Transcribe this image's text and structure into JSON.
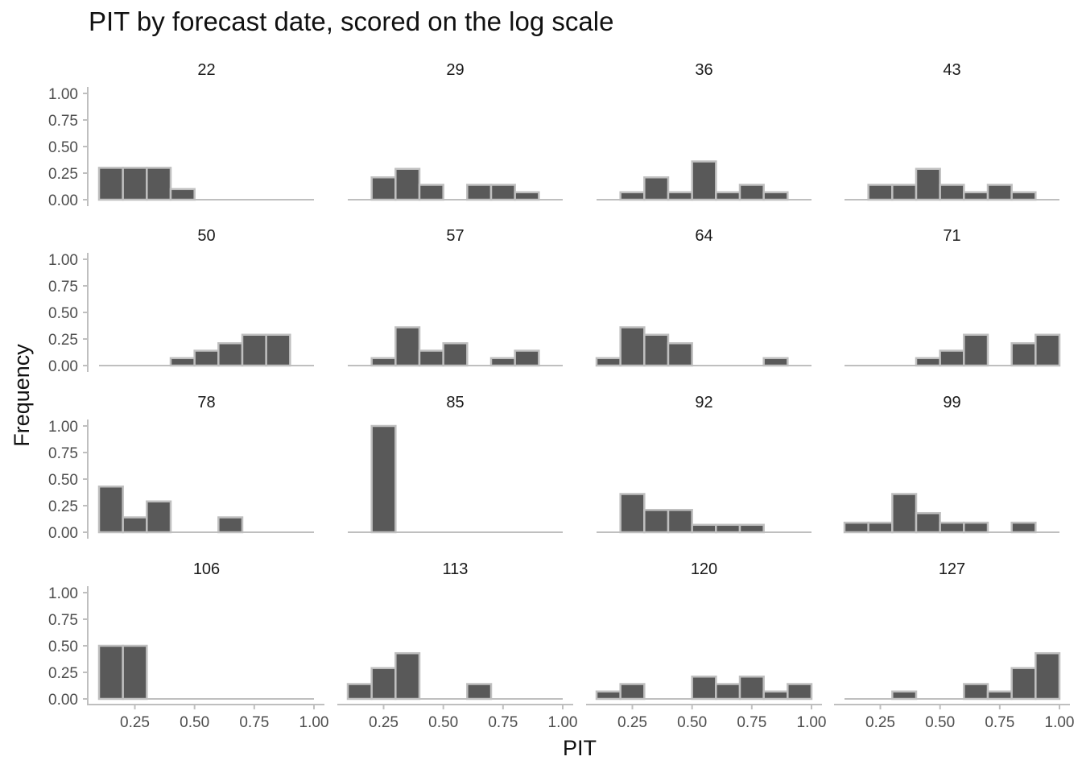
{
  "chart_data": {
    "type": "bar",
    "title": "PIT by forecast date, scored on the log scale",
    "xlabel": "PIT",
    "ylabel": "Frequency",
    "xlim": [
      0.1,
      1.0
    ],
    "ylim": [
      0,
      1.0
    ],
    "xticks": [
      "0.25",
      "0.50",
      "0.75",
      "1.00"
    ],
    "yticks": [
      "0.00",
      "0.25",
      "0.50",
      "0.75",
      "1.00"
    ],
    "bin_edges": [
      0.1,
      0.2,
      0.3,
      0.4,
      0.5,
      0.6,
      0.7,
      0.8,
      0.9,
      1.0
    ],
    "grid": false,
    "colors": {
      "bar_fill": "#595959",
      "bar_outline": "#bfbfbf",
      "axis": "#bfbfbf"
    },
    "panels": [
      {
        "label": "22",
        "values": [
          0.3,
          0.3,
          0.3,
          0.1,
          0,
          0,
          0,
          0,
          0
        ]
      },
      {
        "label": "29",
        "values": [
          0,
          0.21,
          0.29,
          0.14,
          0,
          0.14,
          0.14,
          0.07,
          0
        ]
      },
      {
        "label": "36",
        "values": [
          0,
          0.07,
          0.21,
          0.07,
          0.36,
          0.07,
          0.14,
          0.07,
          0
        ]
      },
      {
        "label": "43",
        "values": [
          0,
          0.14,
          0.14,
          0.29,
          0.14,
          0.07,
          0.14,
          0.07,
          0
        ]
      },
      {
        "label": "50",
        "values": [
          0,
          0,
          0,
          0.07,
          0.14,
          0.21,
          0.29,
          0.29,
          0
        ]
      },
      {
        "label": "57",
        "values": [
          0,
          0.07,
          0.36,
          0.14,
          0.21,
          0,
          0.07,
          0.14,
          0
        ]
      },
      {
        "label": "64",
        "values": [
          0.07,
          0.36,
          0.29,
          0.21,
          0,
          0,
          0,
          0.07,
          0
        ]
      },
      {
        "label": "71",
        "values": [
          0,
          0,
          0,
          0.07,
          0.14,
          0.29,
          0,
          0.21,
          0.29
        ]
      },
      {
        "label": "78",
        "values": [
          0.43,
          0.14,
          0.29,
          0,
          0,
          0.14,
          0,
          0,
          0
        ]
      },
      {
        "label": "85",
        "values": [
          0,
          1.0,
          0,
          0,
          0,
          0,
          0,
          0,
          0
        ]
      },
      {
        "label": "92",
        "values": [
          0,
          0.36,
          0.21,
          0.21,
          0.07,
          0.07,
          0.07,
          0,
          0
        ]
      },
      {
        "label": "99",
        "values": [
          0.09,
          0.09,
          0.36,
          0.18,
          0.09,
          0.09,
          0,
          0.09,
          0
        ]
      },
      {
        "label": "106",
        "values": [
          0.5,
          0.5,
          0,
          0,
          0,
          0,
          0,
          0,
          0
        ]
      },
      {
        "label": "113",
        "values": [
          0.14,
          0.29,
          0.43,
          0,
          0,
          0.14,
          0,
          0,
          0
        ]
      },
      {
        "label": "120",
        "values": [
          0.07,
          0.14,
          0,
          0,
          0.21,
          0.14,
          0.21,
          0.07,
          0.14
        ]
      },
      {
        "label": "127",
        "values": [
          0,
          0,
          0.07,
          0,
          0,
          0.14,
          0.07,
          0.29,
          0.43
        ]
      }
    ]
  }
}
